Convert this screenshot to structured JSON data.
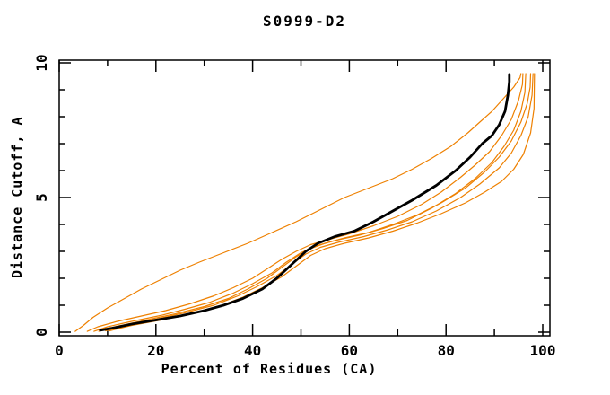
{
  "figure": {
    "background": "#ffffff"
  },
  "chart_data": {
    "type": "line",
    "title": "S0999-D2",
    "xlabel": "Percent of Residues (CA)",
    "ylabel": "Distance Cutoff, A",
    "xlim": [
      0,
      101.5
    ],
    "ylim": [
      -0.25,
      10.1
    ],
    "grid": false,
    "legend": "none",
    "axis_color": "#000000",
    "x_ticks_major": [
      0,
      20,
      40,
      60,
      80,
      100
    ],
    "x_ticks_minor": [
      10,
      30,
      50,
      70,
      90
    ],
    "y_ticks_major": [
      0,
      5,
      10
    ],
    "y_ticks_minor": [
      1,
      2,
      3,
      4,
      6,
      7,
      8,
      9
    ],
    "series": [
      {
        "name": "target-model-black",
        "color": "#000000",
        "width": 2.8,
        "points": [
          [
            8.5,
            0.07
          ],
          [
            11,
            0.15
          ],
          [
            15,
            0.3
          ],
          [
            20,
            0.45
          ],
          [
            25,
            0.6
          ],
          [
            30,
            0.8
          ],
          [
            34,
            1.0
          ],
          [
            38,
            1.25
          ],
          [
            42,
            1.6
          ],
          [
            45,
            2.0
          ],
          [
            48,
            2.5
          ],
          [
            51,
            3.0
          ],
          [
            53.5,
            3.3
          ],
          [
            57,
            3.55
          ],
          [
            61,
            3.75
          ],
          [
            65,
            4.1
          ],
          [
            69,
            4.5
          ],
          [
            73,
            4.9
          ],
          [
            78,
            5.45
          ],
          [
            82,
            6.0
          ],
          [
            85,
            6.5
          ],
          [
            87.5,
            7.0
          ],
          [
            89.5,
            7.3
          ],
          [
            91,
            7.7
          ],
          [
            92.2,
            8.2
          ],
          [
            92.8,
            8.8
          ],
          [
            93.1,
            9.3
          ],
          [
            93.1,
            9.57
          ]
        ]
      },
      {
        "name": "reference-orange-1",
        "color": "#ee8000",
        "width": 1.2,
        "points": [
          [
            3.3,
            0.03
          ],
          [
            5,
            0.25
          ],
          [
            7,
            0.55
          ],
          [
            10,
            0.9
          ],
          [
            13,
            1.2
          ],
          [
            17,
            1.6
          ],
          [
            21,
            1.95
          ],
          [
            25,
            2.3
          ],
          [
            29,
            2.6
          ],
          [
            34,
            2.95
          ],
          [
            39,
            3.3
          ],
          [
            44,
            3.7
          ],
          [
            49,
            4.1
          ],
          [
            54,
            4.55
          ],
          [
            59,
            5.0
          ],
          [
            64,
            5.35
          ],
          [
            69,
            5.7
          ],
          [
            73,
            6.05
          ],
          [
            77,
            6.45
          ],
          [
            81,
            6.9
          ],
          [
            84.5,
            7.4
          ],
          [
            87,
            7.8
          ],
          [
            89.5,
            8.2
          ],
          [
            92,
            8.7
          ],
          [
            94,
            9.1
          ],
          [
            95.3,
            9.45
          ],
          [
            95.5,
            9.6
          ]
        ]
      },
      {
        "name": "reference-orange-2",
        "color": "#ee8000",
        "width": 1.2,
        "points": [
          [
            5.8,
            0.03
          ],
          [
            8,
            0.2
          ],
          [
            12,
            0.4
          ],
          [
            17,
            0.6
          ],
          [
            22,
            0.8
          ],
          [
            27,
            1.05
          ],
          [
            32,
            1.35
          ],
          [
            36,
            1.65
          ],
          [
            40,
            2.0
          ],
          [
            43,
            2.35
          ],
          [
            46,
            2.7
          ],
          [
            49,
            3.0
          ],
          [
            52,
            3.25
          ],
          [
            56,
            3.45
          ],
          [
            60,
            3.65
          ],
          [
            65,
            3.95
          ],
          [
            70,
            4.3
          ],
          [
            75,
            4.75
          ],
          [
            79,
            5.2
          ],
          [
            83,
            5.75
          ],
          [
            86,
            6.2
          ],
          [
            89,
            6.7
          ],
          [
            91.5,
            7.3
          ],
          [
            93.5,
            7.9
          ],
          [
            95,
            8.6
          ],
          [
            95.8,
            9.2
          ],
          [
            95.9,
            9.6
          ]
        ]
      },
      {
        "name": "reference-orange-3",
        "color": "#ee8000",
        "width": 1.2,
        "points": [
          [
            7.2,
            0.03
          ],
          [
            10,
            0.2
          ],
          [
            15,
            0.4
          ],
          [
            21,
            0.62
          ],
          [
            26,
            0.85
          ],
          [
            31,
            1.1
          ],
          [
            36,
            1.45
          ],
          [
            40,
            1.8
          ],
          [
            44,
            2.2
          ],
          [
            47,
            2.6
          ],
          [
            50,
            2.95
          ],
          [
            53,
            3.2
          ],
          [
            57,
            3.4
          ],
          [
            62,
            3.6
          ],
          [
            67,
            3.85
          ],
          [
            72,
            4.15
          ],
          [
            77,
            4.6
          ],
          [
            82,
            5.15
          ],
          [
            86,
            5.7
          ],
          [
            89.5,
            6.3
          ],
          [
            92,
            6.9
          ],
          [
            94,
            7.5
          ],
          [
            95.5,
            8.2
          ],
          [
            96.3,
            8.9
          ],
          [
            96.5,
            9.6
          ]
        ]
      },
      {
        "name": "reference-orange-4",
        "color": "#ee8000",
        "width": 1.2,
        "points": [
          [
            8.2,
            0.03
          ],
          [
            12,
            0.22
          ],
          [
            18,
            0.45
          ],
          [
            24,
            0.68
          ],
          [
            30,
            0.95
          ],
          [
            35,
            1.25
          ],
          [
            39,
            1.6
          ],
          [
            43,
            2.0
          ],
          [
            46,
            2.4
          ],
          [
            49,
            2.8
          ],
          [
            52,
            3.1
          ],
          [
            55,
            3.3
          ],
          [
            59,
            3.5
          ],
          [
            64,
            3.7
          ],
          [
            69,
            4.0
          ],
          [
            74,
            4.35
          ],
          [
            79,
            4.8
          ],
          [
            84,
            5.35
          ],
          [
            88,
            5.95
          ],
          [
            91,
            6.5
          ],
          [
            93.5,
            7.1
          ],
          [
            95.5,
            7.8
          ],
          [
            96.8,
            8.5
          ],
          [
            97.4,
            9.1
          ],
          [
            97.5,
            9.6
          ]
        ]
      },
      {
        "name": "reference-orange-5",
        "color": "#ee8000",
        "width": 1.2,
        "points": [
          [
            9.6,
            0.05
          ],
          [
            14,
            0.25
          ],
          [
            20,
            0.48
          ],
          [
            26,
            0.72
          ],
          [
            32,
            1.0
          ],
          [
            37,
            1.35
          ],
          [
            41,
            1.7
          ],
          [
            45,
            2.1
          ],
          [
            48,
            2.5
          ],
          [
            51,
            2.9
          ],
          [
            54,
            3.15
          ],
          [
            58,
            3.35
          ],
          [
            63,
            3.55
          ],
          [
            68,
            3.8
          ],
          [
            73,
            4.1
          ],
          [
            78,
            4.5
          ],
          [
            83,
            5.0
          ],
          [
            87,
            5.5
          ],
          [
            91,
            6.1
          ],
          [
            93.5,
            6.65
          ],
          [
            95.5,
            7.3
          ],
          [
            97,
            8.0
          ],
          [
            97.8,
            8.8
          ],
          [
            98,
            9.6
          ]
        ]
      },
      {
        "name": "reference-orange-6",
        "color": "#ee8000",
        "width": 1.2,
        "points": [
          [
            10.4,
            0.05
          ],
          [
            15,
            0.25
          ],
          [
            21,
            0.45
          ],
          [
            27,
            0.68
          ],
          [
            33,
            0.95
          ],
          [
            38,
            1.3
          ],
          [
            42,
            1.65
          ],
          [
            46,
            2.05
          ],
          [
            49,
            2.45
          ],
          [
            52,
            2.85
          ],
          [
            55,
            3.1
          ],
          [
            59,
            3.3
          ],
          [
            64,
            3.5
          ],
          [
            69,
            3.75
          ],
          [
            74,
            4.05
          ],
          [
            79,
            4.4
          ],
          [
            84,
            4.8
          ],
          [
            88,
            5.2
          ],
          [
            91.5,
            5.6
          ],
          [
            94,
            6.05
          ],
          [
            96,
            6.6
          ],
          [
            97.5,
            7.4
          ],
          [
            98.2,
            8.3
          ],
          [
            98.3,
            9.6
          ]
        ]
      }
    ]
  }
}
